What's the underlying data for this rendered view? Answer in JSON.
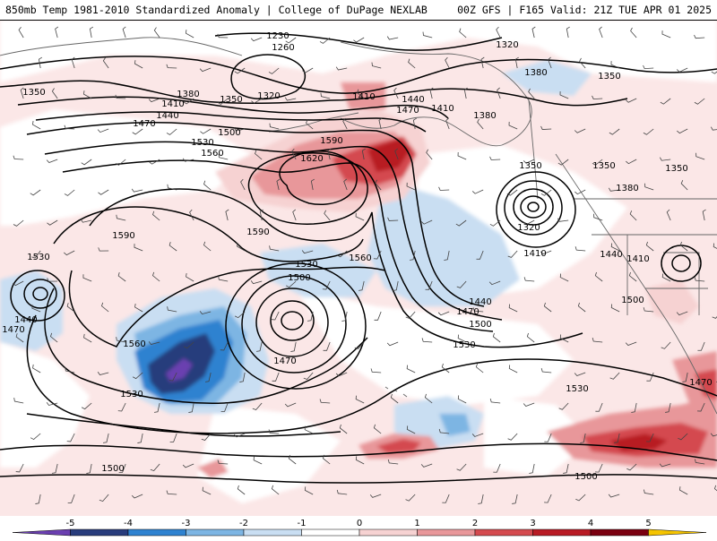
{
  "header": {
    "title_left": "850mb Temp 1981-2010 Standardized Anomaly | College of DuPage NEXLAB",
    "title_right": "00Z GFS | F165 Valid: 21Z TUE APR 01 2025"
  },
  "colors": {
    "anomaly_-5": "#6a3fb0",
    "anomaly_-4": "#283c7c",
    "anomaly_-3": "#2e82d0",
    "anomaly_-2": "#7db5e3",
    "anomaly_-1": "#c9def2",
    "anomaly_0": "#ffffff",
    "anomaly_1": "#f6d2d2",
    "anomaly_2": "#e8979a",
    "anomaly_3": "#d44a4f",
    "anomaly_4": "#b81b24",
    "anomaly_5": "#7a0010",
    "anomaly_6": "#f5c400",
    "contour": "#000000",
    "coast": "#666666"
  },
  "legend": {
    "ticks": [
      "-5",
      "-4",
      "-3",
      "-2",
      "-1",
      "0",
      "1",
      "2",
      "3",
      "4",
      "5"
    ]
  },
  "contour_labels": [
    {
      "text": "1230"
    },
    {
      "text": "1260"
    },
    {
      "text": "1320"
    },
    {
      "text": "1380"
    },
    {
      "text": "1350"
    },
    {
      "text": "1350"
    },
    {
      "text": "1380"
    },
    {
      "text": "1410"
    },
    {
      "text": "1440"
    },
    {
      "text": "1470"
    },
    {
      "text": "1350"
    },
    {
      "text": "1320"
    },
    {
      "text": "1410"
    },
    {
      "text": "1440"
    },
    {
      "text": "1470"
    },
    {
      "text": "1410"
    },
    {
      "text": "1380"
    },
    {
      "text": "1500"
    },
    {
      "text": "1530"
    },
    {
      "text": "1560"
    },
    {
      "text": "1590"
    },
    {
      "text": "1620"
    },
    {
      "text": "1590"
    },
    {
      "text": "1590"
    },
    {
      "text": "1530"
    },
    {
      "text": "1530"
    },
    {
      "text": "1500"
    },
    {
      "text": "1560"
    },
    {
      "text": "1350"
    },
    {
      "text": "1320"
    },
    {
      "text": "1350"
    },
    {
      "text": "1350"
    },
    {
      "text": "1380"
    },
    {
      "text": "1410"
    },
    {
      "text": "1440"
    },
    {
      "text": "1410"
    },
    {
      "text": "1440"
    },
    {
      "text": "1470"
    },
    {
      "text": "1500"
    },
    {
      "text": "1530"
    },
    {
      "text": "1500"
    },
    {
      "text": "1470"
    },
    {
      "text": "1560"
    },
    {
      "text": "1530"
    },
    {
      "text": "1440"
    },
    {
      "text": "1470"
    },
    {
      "text": "1530"
    },
    {
      "text": "1500"
    },
    {
      "text": "1500"
    },
    {
      "text": "1470"
    }
  ]
}
